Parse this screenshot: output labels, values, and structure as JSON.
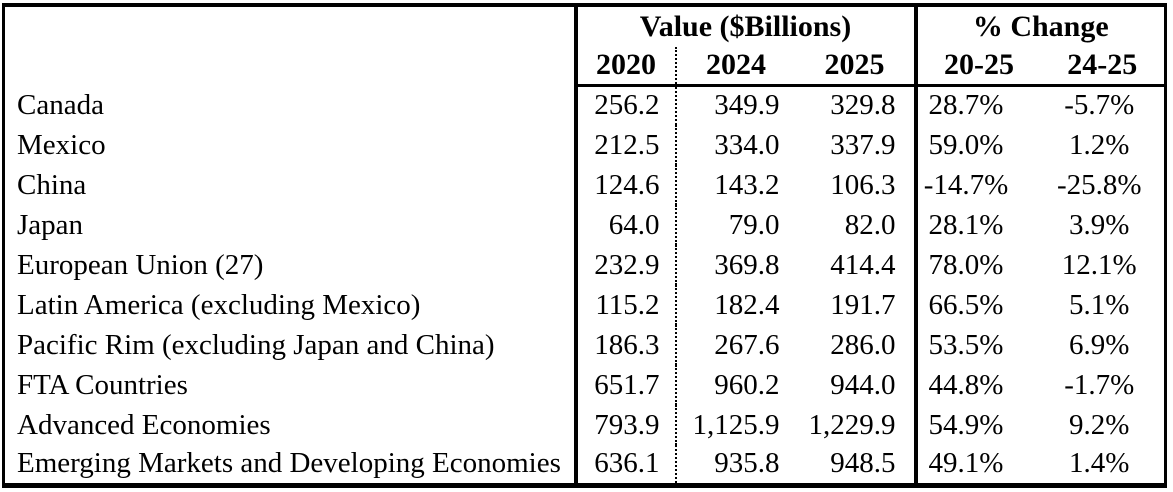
{
  "chart_data": {
    "type": "table",
    "column_groups": [
      {
        "label": "Value ($Billions)",
        "columns": [
          "2020",
          "2024",
          "2025"
        ]
      },
      {
        "label": "% Change",
        "columns": [
          "20-25",
          "24-25"
        ]
      }
    ],
    "row_header_label": "",
    "rows": [
      {
        "label": "Canada",
        "values": [
          "256.2",
          "349.9",
          "329.8",
          "28.7%",
          "-5.7%"
        ]
      },
      {
        "label": "Mexico",
        "values": [
          "212.5",
          "334.0",
          "337.9",
          "59.0%",
          "1.2%"
        ]
      },
      {
        "label": "China",
        "values": [
          "124.6",
          "143.2",
          "106.3",
          "-14.7%",
          "-25.8%"
        ]
      },
      {
        "label": "Japan",
        "values": [
          "64.0",
          "79.0",
          "82.0",
          "28.1%",
          "3.9%"
        ]
      },
      {
        "label": "European Union (27)",
        "values": [
          "232.9",
          "369.8",
          "414.4",
          "78.0%",
          "12.1%"
        ]
      },
      {
        "label": "Latin America (excluding Mexico)",
        "values": [
          "115.2",
          "182.4",
          "191.7",
          "66.5%",
          "5.1%"
        ]
      },
      {
        "label": "Pacific Rim (excluding Japan and China)",
        "values": [
          "186.3",
          "267.6",
          "286.0",
          "53.5%",
          "6.9%"
        ]
      },
      {
        "label": "FTA Countries",
        "values": [
          "651.7",
          "960.2",
          "944.0",
          "44.8%",
          "-1.7%"
        ]
      },
      {
        "label": "Advanced Economies",
        "values": [
          "793.9",
          "1,125.9",
          "1,229.9",
          "54.9%",
          "9.2%"
        ]
      },
      {
        "label": "Emerging Markets and Developing Economies",
        "values": [
          "636.1",
          "935.8",
          "948.5",
          "49.1%",
          "1.4%"
        ]
      }
    ],
    "layout": {
      "grid": "off",
      "divider_2020_2024": "dotted",
      "section_dividers": "solid-thick"
    },
    "colors": {
      "text": "#000000",
      "background": "#ffffff",
      "border": "#000000"
    }
  }
}
